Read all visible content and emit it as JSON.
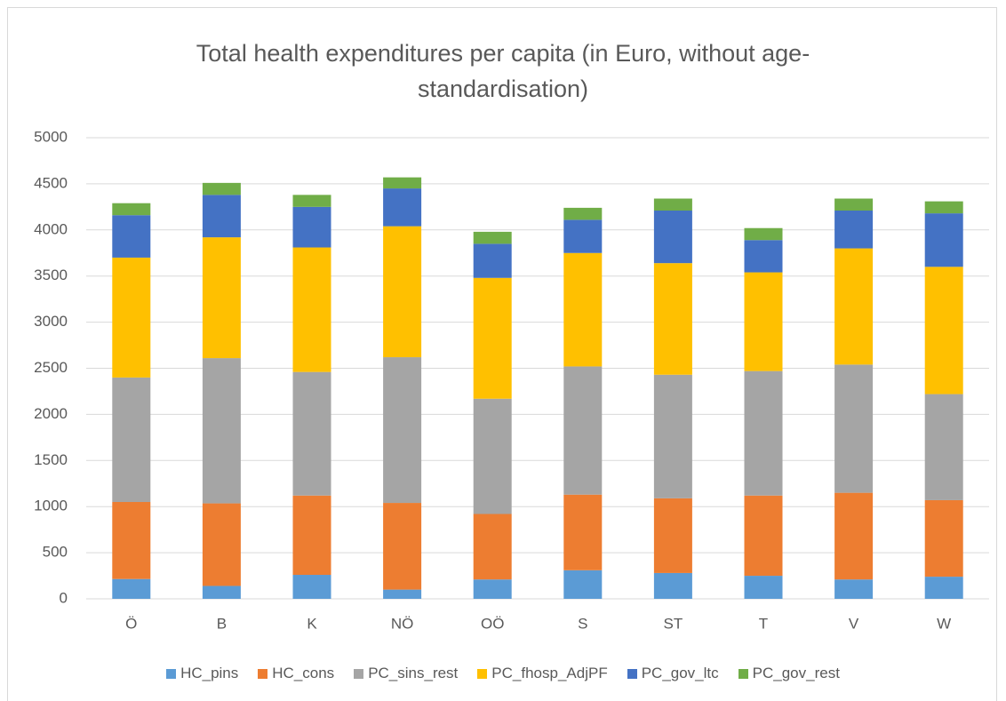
{
  "chart_data": {
    "type": "stacked_bar",
    "title": "Total health expenditures per capita (in Euro, without age-standardisation)",
    "categories": [
      "Ö",
      "B",
      "K",
      "NÖ",
      "OÖ",
      "S",
      "ST",
      "T",
      "V",
      "W"
    ],
    "series": [
      {
        "name": "HC_pins",
        "color": "#5b9bd5",
        "values": [
          215,
          140,
          260,
          100,
          210,
          310,
          280,
          250,
          210,
          240
        ]
      },
      {
        "name": "HC_cons",
        "color": "#ed7d31",
        "values": [
          835,
          895,
          860,
          940,
          710,
          820,
          810,
          870,
          940,
          830
        ]
      },
      {
        "name": "PC_sins_rest",
        "color": "#a5a5a5",
        "values": [
          1350,
          1575,
          1340,
          1580,
          1250,
          1390,
          1340,
          1350,
          1390,
          1150
        ]
      },
      {
        "name": "PC_fhosp_AdjPF",
        "color": "#ffc000",
        "values": [
          1300,
          1310,
          1350,
          1420,
          1310,
          1230,
          1210,
          1070,
          1260,
          1380
        ]
      },
      {
        "name": "PC_gov_ltc",
        "color": "#4472c4",
        "values": [
          460,
          460,
          440,
          410,
          370,
          360,
          570,
          350,
          410,
          580
        ]
      },
      {
        "name": "PC_gov_rest",
        "color": "#70ad47",
        "values": [
          130,
          130,
          130,
          120,
          130,
          130,
          130,
          130,
          130,
          130
        ]
      }
    ],
    "ylim": [
      0,
      5000
    ],
    "yticks": [
      0,
      500,
      1000,
      1500,
      2000,
      2500,
      3000,
      3500,
      4000,
      4500,
      5000
    ],
    "grid": true,
    "legend": "bottom"
  }
}
